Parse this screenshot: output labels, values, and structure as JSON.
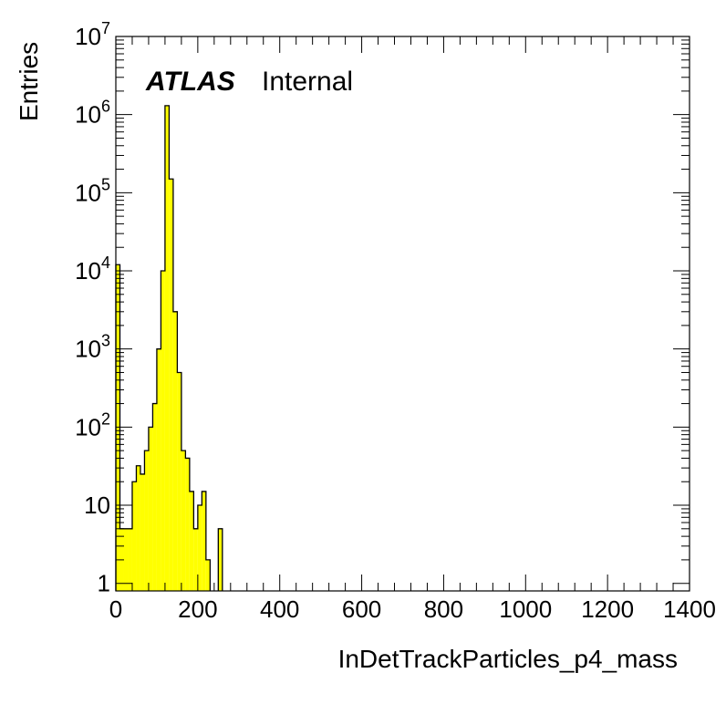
{
  "chart_data": {
    "type": "bar",
    "title": "",
    "xlabel": "InDetTrackParticles_p4_mass",
    "ylabel": "Entries",
    "xlim": [
      0,
      1400
    ],
    "ylim": [
      0.8,
      10000000
    ],
    "yscale": "log",
    "bin_width": 10,
    "x_ticks": [
      0,
      200,
      400,
      600,
      800,
      1000,
      1200,
      1400
    ],
    "x_tick_labels": [
      "0",
      "200",
      "400",
      "600",
      "800",
      "1000",
      "1200",
      "1400"
    ],
    "y_ticks": [
      1,
      10,
      100,
      1000,
      10000,
      100000,
      1000000,
      10000000
    ],
    "y_tick_labels": [
      {
        "base": "1",
        "exp": ""
      },
      {
        "base": "10",
        "exp": ""
      },
      {
        "base": "10",
        "exp": "2"
      },
      {
        "base": "10",
        "exp": "3"
      },
      {
        "base": "10",
        "exp": "4"
      },
      {
        "base": "10",
        "exp": "5"
      },
      {
        "base": "10",
        "exp": "6"
      },
      {
        "base": "10",
        "exp": "7"
      }
    ],
    "bin_low_edges": [
      0,
      10,
      20,
      30,
      40,
      50,
      60,
      70,
      80,
      90,
      100,
      110,
      120,
      130,
      140,
      150,
      160,
      170,
      180,
      190,
      200,
      210,
      220,
      230,
      240,
      250,
      260,
      270,
      280,
      290
    ],
    "values": [
      12000,
      5,
      5,
      5,
      20,
      32,
      25,
      50,
      100,
      200,
      1000,
      10000,
      1300000,
      150000,
      3000,
      500,
      50,
      40,
      15,
      5,
      10,
      15,
      2,
      0,
      0,
      5,
      0,
      0,
      0,
      0
    ],
    "fill_color": "#ffff00",
    "edge_color": "#000000",
    "legend": "none",
    "grid": false
  },
  "annotation": {
    "experiment": "ATLAS",
    "status": "Internal"
  }
}
